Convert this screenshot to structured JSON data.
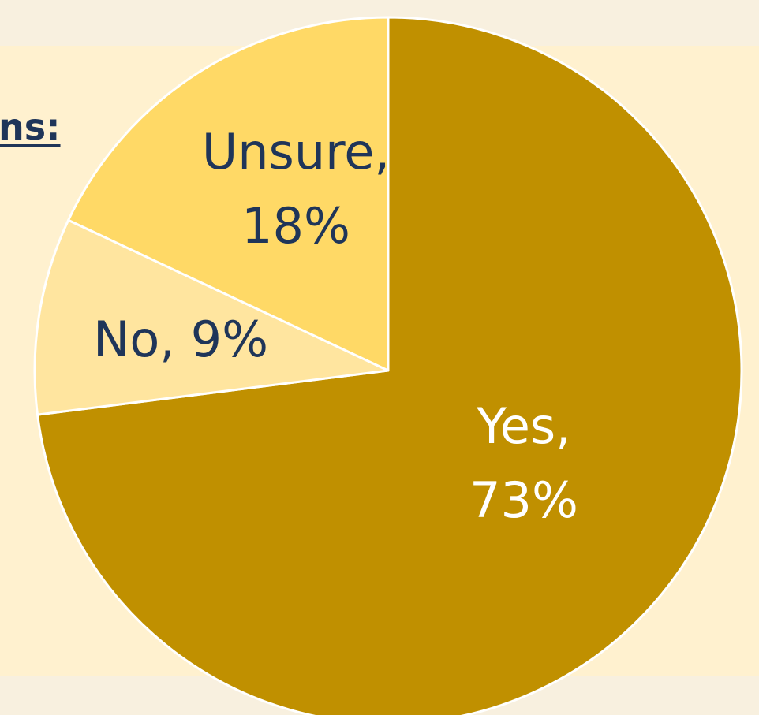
{
  "header": {
    "title_fragment": "ns:"
  },
  "chart_data": {
    "type": "pie",
    "slices": [
      {
        "label_lines": [
          "Yes,",
          "73%"
        ],
        "name": "Yes",
        "value": 73,
        "color": "#c09000",
        "text_color": "#ffffff"
      },
      {
        "label_lines": [
          "No, 9%"
        ],
        "name": "No",
        "value": 9,
        "color": "#ffe59f",
        "text_color": "#1f3559"
      },
      {
        "label_lines": [
          "Unsure,",
          "18%"
        ],
        "name": "Unsure",
        "value": 18,
        "color": "#ffd966",
        "text_color": "#1f3559"
      }
    ],
    "start_angle_deg": 0,
    "direction": "clockwise",
    "colors": {
      "background": "#f8f0df",
      "panel": "#fff1cf",
      "slice_border": "#ffffff",
      "title": "#1f3559"
    }
  }
}
